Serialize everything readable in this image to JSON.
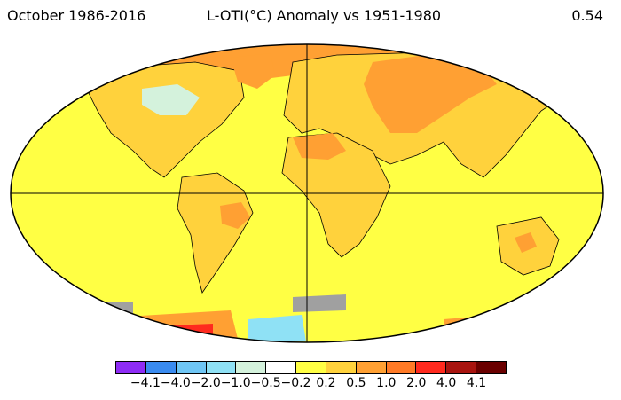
{
  "header": {
    "left": "October 1986-2016",
    "center": "L-OTI(°C) Anomaly vs 1951-1980",
    "right": "0.54"
  },
  "colors": {
    "ocean_base": "#ffff44",
    "land_base": "#ffd23c",
    "warm_orange": "#ffa033",
    "hot_red": "#ff2a1e",
    "cool_green": "#d4f2dc",
    "cool_blue": "#8fe1f5",
    "no_data": "#a0a0a0",
    "outline": "#000000"
  },
  "legend": {
    "colors": [
      "#8e2cf5",
      "#3a8bf0",
      "#6fc6f5",
      "#8fe1f5",
      "#d4f2dc",
      "#ffffff",
      "#ffff44",
      "#ffd23c",
      "#ffa033",
      "#ff7a26",
      "#ff2a1e",
      "#a8140f",
      "#6a0000"
    ],
    "labels": [
      "−4.1",
      "−4.0",
      "−2.0",
      "−1.0",
      "−0.5",
      "−0.2",
      "0.2",
      "0.5",
      "1.0",
      "2.0",
      "4.0",
      "4.1"
    ]
  }
}
